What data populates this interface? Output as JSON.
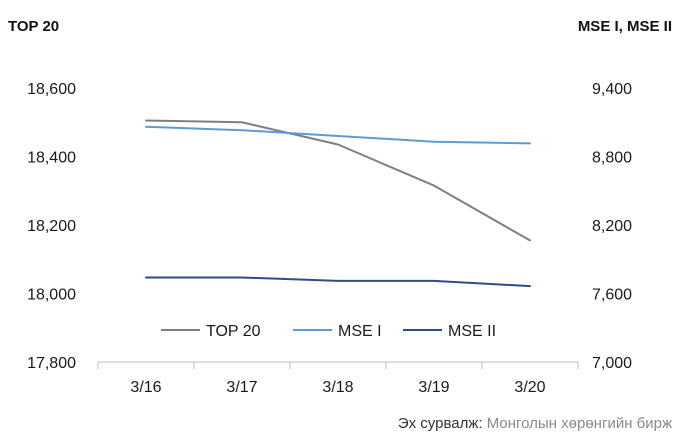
{
  "chart_data": {
    "type": "line",
    "title_left": "TOP 20",
    "title_right": "MSE I, MSE II",
    "categories": [
      "3/16",
      "3/17",
      "3/18",
      "3/19",
      "3/20"
    ],
    "y_left": {
      "ylim": [
        17800,
        18600
      ],
      "ticks": [
        "18,600",
        "18,400",
        "18,200",
        "18,000",
        "17,800"
      ],
      "tick_values": [
        18600,
        18400,
        18200,
        18000,
        17800
      ]
    },
    "y_right": {
      "ylim": [
        7000,
        9400
      ],
      "ticks": [
        "9,400",
        "8,800",
        "8,200",
        "7,600",
        "7,000"
      ],
      "tick_values": [
        9400,
        8800,
        8200,
        7600,
        7000
      ]
    },
    "series": [
      {
        "name": "TOP 20",
        "axis": "left",
        "color": "#7f7f7f",
        "values": [
          18505,
          18500,
          18435,
          18315,
          18155
        ]
      },
      {
        "name": "MSE I",
        "axis": "right",
        "color": "#5b9bd5",
        "values": [
          9060,
          9030,
          8980,
          8930,
          8915
        ]
      },
      {
        "name": "MSE II",
        "axis": "right",
        "color": "#2f4c8a",
        "values": [
          7740,
          7740,
          7710,
          7710,
          7665
        ]
      }
    ],
    "legend": {
      "position": "bottom-center"
    },
    "grid": false
  },
  "source": {
    "label": "Эх сурвалж:",
    "text": " Монголын хөрөнгийн бирж"
  }
}
